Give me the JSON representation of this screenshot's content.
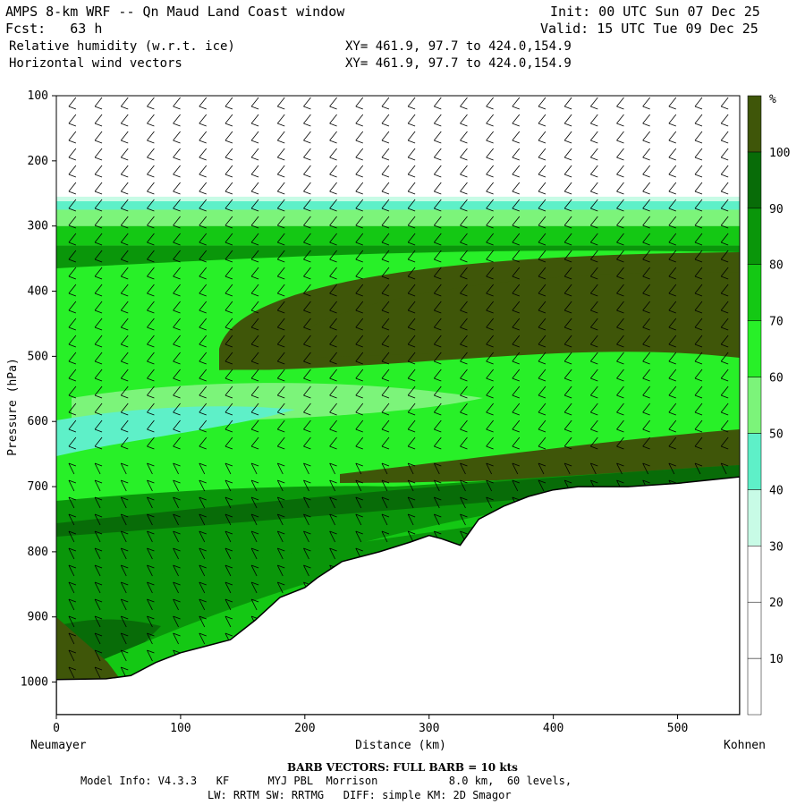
{
  "header": {
    "title": "AMPS 8-km WRF -- Qn Maud Land Coast window",
    "fcst": "Fcst:   63 h",
    "field1": "Relative humidity (w.r.t. ice)",
    "field2": "Horizontal wind vectors",
    "init": "Init: 00 UTC Sun 07 Dec 25",
    "valid": "Valid: 15 UTC Tue 09 Dec 25",
    "xy1": "XY= 461.9, 97.7 to 424.0,154.9",
    "xy2": "XY= 461.9, 97.7 to 424.0,154.9"
  },
  "chart_data": {
    "type": "heatmap",
    "xlabel": "Distance (km)",
    "ylabel": "Pressure (hPa)",
    "xlim": [
      0,
      550
    ],
    "ylim": [
      1050,
      100
    ],
    "x_ticks": [
      0,
      100,
      200,
      300,
      400,
      500
    ],
    "y_ticks": [
      100,
      200,
      300,
      400,
      500,
      600,
      700,
      800,
      900,
      1000
    ],
    "x_start_label": "Neumayer",
    "x_end_label": "Kohnen",
    "colorbar": {
      "unit": "%",
      "levels": [
        10,
        20,
        30,
        40,
        50,
        60,
        70,
        80,
        90,
        100
      ],
      "colors": [
        "#ffffff",
        "#ffffff",
        "#ffffff",
        "#c8fbe6",
        "#5ef0c8",
        "#7cf47a",
        "#28f028",
        "#14c814",
        "#0a960a",
        "#086c08",
        "#3f5609"
      ]
    },
    "terrain_surface": {
      "x": [
        0,
        40,
        60,
        80,
        100,
        120,
        140,
        160,
        180,
        200,
        210,
        230,
        260,
        285,
        300,
        310,
        325,
        340,
        360,
        380,
        400,
        420,
        460,
        500,
        550
      ],
      "p": [
        996,
        995,
        990,
        970,
        955,
        945,
        935,
        905,
        870,
        855,
        840,
        815,
        800,
        785,
        775,
        780,
        790,
        750,
        730,
        715,
        705,
        700,
        700,
        695,
        685
      ]
    },
    "barb_note": "BARB VECTORS:  FULL BARB = 10 kts"
  },
  "footer": {
    "line1": "Model Info: V4.3.3   KF      MYJ PBL  Morrison           8.0 km,  60 levels,",
    "line2": "LW: RRTM SW: RRTMG   DIFF: simple KM: 2D Smagor"
  }
}
